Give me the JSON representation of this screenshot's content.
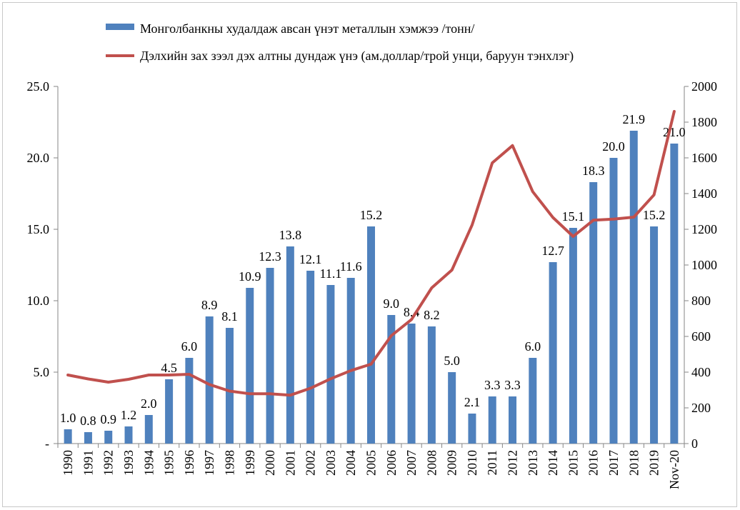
{
  "chart_data": {
    "type": "bar",
    "categories": [
      "1990",
      "1991",
      "1992",
      "1993",
      "1994",
      "1995",
      "1996",
      "1997",
      "1998",
      "1999",
      "2000",
      "2001",
      "2002",
      "2003",
      "2004",
      "2005",
      "2006",
      "2007",
      "2008",
      "2009",
      "2010",
      "2011",
      "2012",
      "2013",
      "2014",
      "2015",
      "2016",
      "2017",
      "2018",
      "2019",
      "Nov-20"
    ],
    "series": [
      {
        "name": "Монголбанкны худалдаж авсан үнэт металлын хэмжээ /тонн/",
        "type": "bar",
        "axis": "left",
        "color": "#4f81bd",
        "values": [
          1.0,
          0.8,
          0.9,
          1.2,
          2.0,
          4.5,
          6.0,
          8.9,
          8.1,
          10.9,
          12.3,
          13.8,
          12.1,
          11.1,
          11.6,
          15.2,
          9.0,
          8.4,
          8.2,
          5.0,
          2.1,
          3.3,
          3.3,
          6.0,
          12.7,
          15.1,
          18.3,
          20.0,
          21.9,
          15.2,
          21.0
        ],
        "labels": [
          "1.0",
          "0.8",
          "0.9",
          "1.2",
          "2.0",
          "4.5",
          "6.0",
          "8.9",
          "8.1",
          "10.9",
          "12.3",
          "13.8",
          "12.1",
          "11.1",
          "11.6",
          "15.2",
          "9.0",
          "8.4",
          "8.2",
          "5.0",
          "2.1",
          "3.3",
          "3.3",
          "6.0",
          "12.7",
          "15.1",
          "18.3",
          "20.0",
          "21.9",
          "15.2",
          "21.0"
        ]
      },
      {
        "name": "Дэлхийн зах зээл дэх алтны дундаж үнэ (ам.доллар/трой унци, баруун тэнхлэг)",
        "type": "line",
        "axis": "right",
        "color": "#c0504d",
        "values": [
          384,
          362,
          344,
          360,
          384,
          384,
          388,
          331,
          294,
          279,
          279,
          271,
          310,
          363,
          409,
          445,
          604,
          695,
          872,
          972,
          1225,
          1572,
          1669,
          1411,
          1266,
          1160,
          1251,
          1257,
          1268,
          1393,
          1860
        ]
      }
    ],
    "left_axis": {
      "ylim": [
        0,
        25
      ],
      "ticks": [
        "-",
        "5.0",
        "10.0",
        "15.0",
        "20.0",
        "25.0"
      ]
    },
    "right_axis": {
      "ylim": [
        0,
        2000
      ],
      "ticks": [
        "0",
        "200",
        "400",
        "600",
        "800",
        "1000",
        "1200",
        "1400",
        "1600",
        "1800",
        "2000"
      ]
    },
    "grid": false,
    "legend_position": "top"
  }
}
